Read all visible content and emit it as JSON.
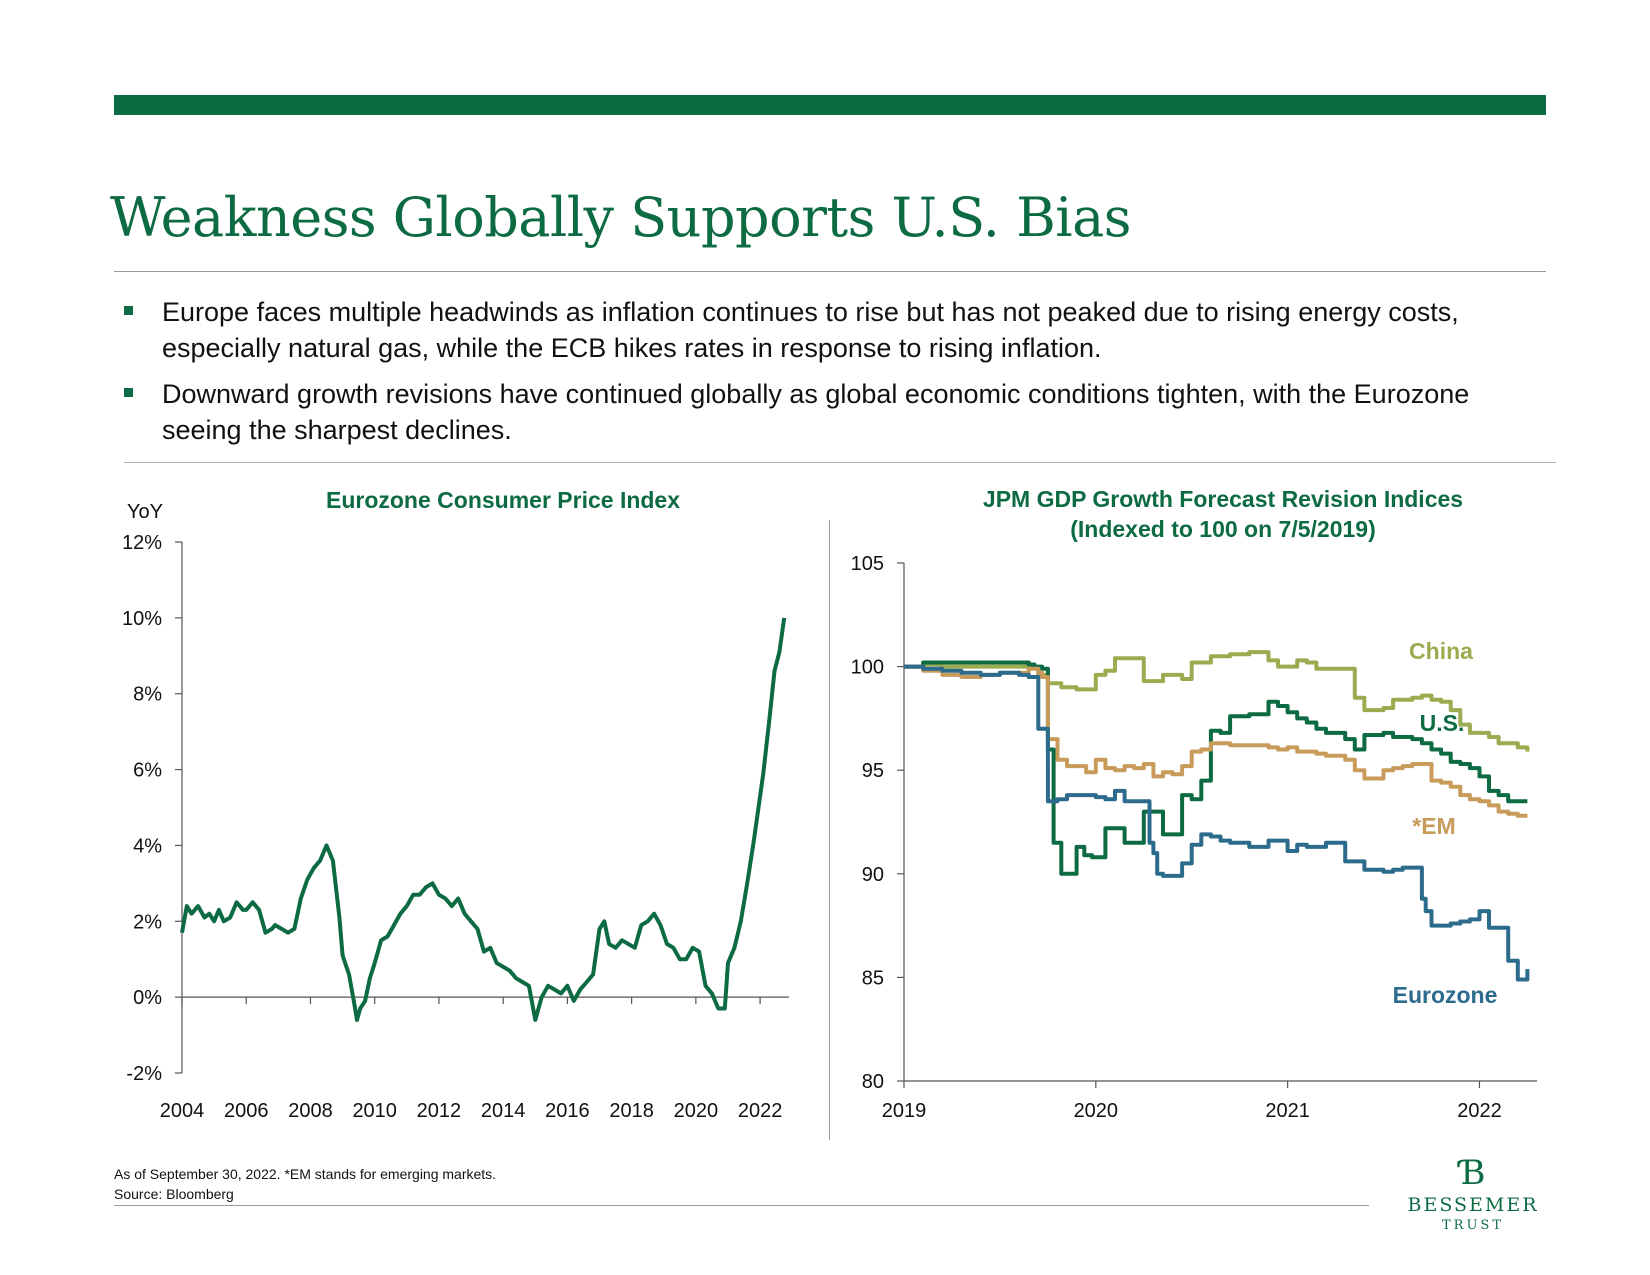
{
  "title": "Weakness Globally Supports U.S. Bias",
  "bullets": [
    "Europe faces multiple headwinds as inflation continues to rise but has not peaked due to rising energy costs, especially natural gas, while the ECB hikes rates in response to rising inflation.",
    "Downward growth revisions have continued globally as global economic conditions tighten, with the Eurozone seeing the sharpest declines."
  ],
  "footnote": {
    "line1": "As of September 30, 2022. *EM stands for emerging markets.",
    "line2": "Source: Bloomberg"
  },
  "logo": {
    "name": "BESSEMER",
    "sub": "TRUST"
  },
  "colors": {
    "brand_green": "#0d6b43"
  },
  "chart_data": [
    {
      "type": "line",
      "title": "Eurozone Consumer Price Index",
      "ylabel": "YoY",
      "ylim": [
        -2,
        12
      ],
      "yticks": [
        "-2%",
        "0%",
        "2%",
        "4%",
        "6%",
        "8%",
        "10%",
        "12%"
      ],
      "xlim": [
        2004,
        2022.9
      ],
      "xticks": [
        "2004",
        "2006",
        "2008",
        "2010",
        "2012",
        "2014",
        "2016",
        "2018",
        "2020",
        "2022"
      ],
      "color": "#0d6b43",
      "series": [
        {
          "x": [
            2004.0,
            2004.15,
            2004.3,
            2004.5,
            2004.7,
            2004.85,
            2005.0,
            2005.15,
            2005.3,
            2005.5,
            2005.7,
            2005.9,
            2006.0,
            2006.2,
            2006.4,
            2006.6,
            2006.8,
            2006.9,
            2007.1,
            2007.3,
            2007.5,
            2007.7,
            2007.9,
            2008.1,
            2008.3,
            2008.5,
            2008.7,
            2008.9,
            2009.0,
            2009.2,
            2009.35,
            2009.45,
            2009.55,
            2009.7,
            2009.85,
            2010.0,
            2010.2,
            2010.4,
            2010.6,
            2010.8,
            2011.0,
            2011.2,
            2011.4,
            2011.6,
            2011.8,
            2012.0,
            2012.2,
            2012.4,
            2012.6,
            2012.8,
            2013.0,
            2013.2,
            2013.4,
            2013.6,
            2013.8,
            2014.0,
            2014.2,
            2014.4,
            2014.6,
            2014.8,
            2015.0,
            2015.2,
            2015.4,
            2015.6,
            2015.8,
            2016.0,
            2016.2,
            2016.4,
            2016.6,
            2016.8,
            2017.0,
            2017.15,
            2017.3,
            2017.5,
            2017.7,
            2017.9,
            2018.1,
            2018.3,
            2018.5,
            2018.7,
            2018.9,
            2019.1,
            2019.3,
            2019.5,
            2019.7,
            2019.9,
            2020.1,
            2020.3,
            2020.5,
            2020.7,
            2020.9,
            2021.0,
            2021.2,
            2021.4,
            2021.6,
            2021.8,
            2021.95,
            2022.1,
            2022.3,
            2022.45,
            2022.6,
            2022.75
          ],
          "y": [
            1.7,
            2.4,
            2.2,
            2.4,
            2.1,
            2.2,
            2.0,
            2.3,
            2.0,
            2.1,
            2.5,
            2.3,
            2.3,
            2.5,
            2.3,
            1.7,
            1.8,
            1.9,
            1.8,
            1.7,
            1.8,
            2.6,
            3.1,
            3.4,
            3.6,
            4.0,
            3.6,
            2.1,
            1.1,
            0.6,
            -0.1,
            -0.6,
            -0.3,
            -0.1,
            0.5,
            0.9,
            1.5,
            1.6,
            1.9,
            2.2,
            2.4,
            2.7,
            2.7,
            2.9,
            3.0,
            2.7,
            2.6,
            2.4,
            2.6,
            2.2,
            2.0,
            1.8,
            1.2,
            1.3,
            0.9,
            0.8,
            0.7,
            0.5,
            0.4,
            0.3,
            -0.6,
            0.0,
            0.3,
            0.2,
            0.1,
            0.3,
            -0.1,
            0.2,
            0.4,
            0.6,
            1.8,
            2.0,
            1.4,
            1.3,
            1.5,
            1.4,
            1.3,
            1.9,
            2.0,
            2.2,
            1.9,
            1.4,
            1.3,
            1.0,
            1.0,
            1.3,
            1.2,
            0.3,
            0.1,
            -0.3,
            -0.3,
            0.9,
            1.3,
            2.0,
            3.0,
            4.1,
            5.0,
            5.9,
            7.4,
            8.6,
            9.1,
            10.0
          ]
        }
      ]
    },
    {
      "type": "line",
      "title": "JPM GDP Growth Forecast Revision Indices",
      "subtitle": "(Indexed to 100 on 7/5/2019)",
      "ylim": [
        80,
        105
      ],
      "yticks": [
        "80",
        "85",
        "90",
        "95",
        "100",
        "105"
      ],
      "xlim": [
        2019.0,
        2022.3
      ],
      "xticks": [
        "2019",
        "2020",
        "2021",
        "2022"
      ],
      "series": [
        {
          "name": "China",
          "color": "#9bab4f",
          "x": [
            2019.0,
            2019.1,
            2019.2,
            2019.4,
            2019.6,
            2019.7,
            2019.75,
            2019.82,
            2019.9,
            2019.95,
            2020.0,
            2020.05,
            2020.1,
            2020.2,
            2020.25,
            2020.35,
            2020.45,
            2020.5,
            2020.6,
            2020.7,
            2020.8,
            2020.9,
            2020.95,
            2021.0,
            2021.05,
            2021.1,
            2021.15,
            2021.2,
            2021.3,
            2021.35,
            2021.4,
            2021.5,
            2021.55,
            2021.65,
            2021.7,
            2021.75,
            2021.8,
            2021.85,
            2021.9,
            2021.95,
            2022.0,
            2022.05,
            2022.1,
            2022.15,
            2022.2,
            2022.25
          ],
          "y": [
            100.0,
            100.1,
            100.0,
            100.0,
            100.0,
            99.6,
            99.2,
            99.0,
            98.9,
            98.9,
            99.6,
            99.8,
            100.4,
            100.4,
            99.3,
            99.6,
            99.4,
            100.2,
            100.5,
            100.6,
            100.7,
            100.3,
            100.0,
            100.0,
            100.3,
            100.2,
            99.9,
            99.9,
            99.9,
            98.5,
            97.9,
            98.0,
            98.4,
            98.5,
            98.6,
            98.4,
            98.3,
            97.9,
            97.2,
            96.8,
            96.8,
            96.6,
            96.3,
            96.3,
            96.1,
            95.9
          ]
        },
        {
          "name": "U.S.",
          "color": "#0d6b43",
          "x": [
            2019.0,
            2019.1,
            2019.2,
            2019.3,
            2019.4,
            2019.5,
            2019.6,
            2019.65,
            2019.68,
            2019.72,
            2019.75,
            2019.78,
            2019.82,
            2019.86,
            2019.9,
            2019.94,
            2019.98,
            2020.05,
            2020.1,
            2020.15,
            2020.2,
            2020.25,
            2020.3,
            2020.35,
            2020.45,
            2020.5,
            2020.55,
            2020.6,
            2020.65,
            2020.7,
            2020.8,
            2020.9,
            2020.95,
            2021.0,
            2021.05,
            2021.1,
            2021.15,
            2021.2,
            2021.3,
            2021.35,
            2021.4,
            2021.45,
            2021.5,
            2021.55,
            2021.6,
            2021.65,
            2021.7,
            2021.75,
            2021.8,
            2021.85,
            2021.9,
            2021.95,
            2022.0,
            2022.05,
            2022.1,
            2022.15,
            2022.2,
            2022.25
          ],
          "y": [
            100.0,
            100.2,
            100.2,
            100.2,
            100.2,
            100.2,
            100.2,
            100.1,
            100.0,
            99.9,
            96.0,
            91.5,
            90.0,
            90.0,
            91.3,
            90.9,
            90.8,
            92.2,
            92.2,
            91.5,
            91.5,
            93.0,
            93.0,
            91.9,
            93.8,
            93.6,
            94.5,
            96.9,
            96.8,
            97.6,
            97.7,
            98.3,
            98.1,
            97.8,
            97.5,
            97.3,
            97.0,
            96.8,
            96.5,
            96.0,
            96.7,
            96.7,
            96.8,
            96.6,
            96.6,
            96.5,
            96.3,
            96.0,
            95.8,
            95.4,
            95.3,
            95.1,
            94.7,
            94.0,
            93.8,
            93.5,
            93.5,
            93.5
          ]
        },
        {
          "name": "*EM",
          "color": "#c89b5a",
          "x": [
            2019.0,
            2019.1,
            2019.2,
            2019.3,
            2019.4,
            2019.5,
            2019.6,
            2019.65,
            2019.7,
            2019.72,
            2019.75,
            2019.8,
            2019.85,
            2019.9,
            2019.95,
            2020.0,
            2020.05,
            2020.1,
            2020.15,
            2020.2,
            2020.25,
            2020.3,
            2020.35,
            2020.4,
            2020.45,
            2020.5,
            2020.55,
            2020.6,
            2020.7,
            2020.8,
            2020.9,
            2020.95,
            2021.0,
            2021.05,
            2021.1,
            2021.15,
            2021.2,
            2021.3,
            2021.35,
            2021.4,
            2021.5,
            2021.55,
            2021.6,
            2021.65,
            2021.7,
            2021.75,
            2021.8,
            2021.85,
            2021.9,
            2021.95,
            2022.0,
            2022.05,
            2022.1,
            2022.15,
            2022.2,
            2022.25
          ],
          "y": [
            100.0,
            99.8,
            99.6,
            99.5,
            99.6,
            99.7,
            99.7,
            99.9,
            99.7,
            99.5,
            96.5,
            95.5,
            95.2,
            95.2,
            94.9,
            95.5,
            95.1,
            95.0,
            95.2,
            95.1,
            95.3,
            94.7,
            94.9,
            94.8,
            95.2,
            95.9,
            96.0,
            96.3,
            96.2,
            96.2,
            96.1,
            96.0,
            96.1,
            95.9,
            95.9,
            95.8,
            95.7,
            95.5,
            95.0,
            94.6,
            95.0,
            95.1,
            95.2,
            95.3,
            95.3,
            94.5,
            94.4,
            94.2,
            93.8,
            93.6,
            93.5,
            93.3,
            93.0,
            92.9,
            92.8,
            92.8
          ]
        },
        {
          "name": "Eurozone",
          "color": "#2c6b8c",
          "x": [
            2019.0,
            2019.1,
            2019.2,
            2019.3,
            2019.4,
            2019.5,
            2019.6,
            2019.65,
            2019.7,
            2019.75,
            2019.8,
            2019.85,
            2019.9,
            2019.95,
            2020.0,
            2020.05,
            2020.1,
            2020.15,
            2020.2,
            2020.25,
            2020.28,
            2020.3,
            2020.32,
            2020.35,
            2020.4,
            2020.45,
            2020.5,
            2020.55,
            2020.6,
            2020.65,
            2020.7,
            2020.8,
            2020.9,
            2020.95,
            2021.0,
            2021.05,
            2021.1,
            2021.15,
            2021.2,
            2021.3,
            2021.35,
            2021.4,
            2021.5,
            2021.55,
            2021.6,
            2021.65,
            2021.7,
            2021.72,
            2021.75,
            2021.8,
            2021.85,
            2021.9,
            2021.95,
            2022.0,
            2022.05,
            2022.1,
            2022.15,
            2022.2,
            2022.25
          ],
          "y": [
            100.0,
            99.9,
            99.8,
            99.7,
            99.6,
            99.7,
            99.6,
            99.5,
            97.0,
            93.5,
            93.6,
            93.8,
            93.8,
            93.8,
            93.7,
            93.6,
            94.0,
            93.5,
            93.5,
            93.5,
            91.5,
            91.0,
            90.0,
            89.9,
            89.9,
            90.5,
            91.4,
            91.9,
            91.8,
            91.6,
            91.5,
            91.3,
            91.6,
            91.6,
            91.1,
            91.4,
            91.3,
            91.3,
            91.5,
            90.6,
            90.6,
            90.2,
            90.1,
            90.2,
            90.3,
            90.3,
            88.8,
            88.2,
            87.5,
            87.5,
            87.6,
            87.7,
            87.8,
            88.2,
            87.4,
            87.4,
            85.8,
            84.9,
            85.4
          ]
        }
      ]
    }
  ]
}
